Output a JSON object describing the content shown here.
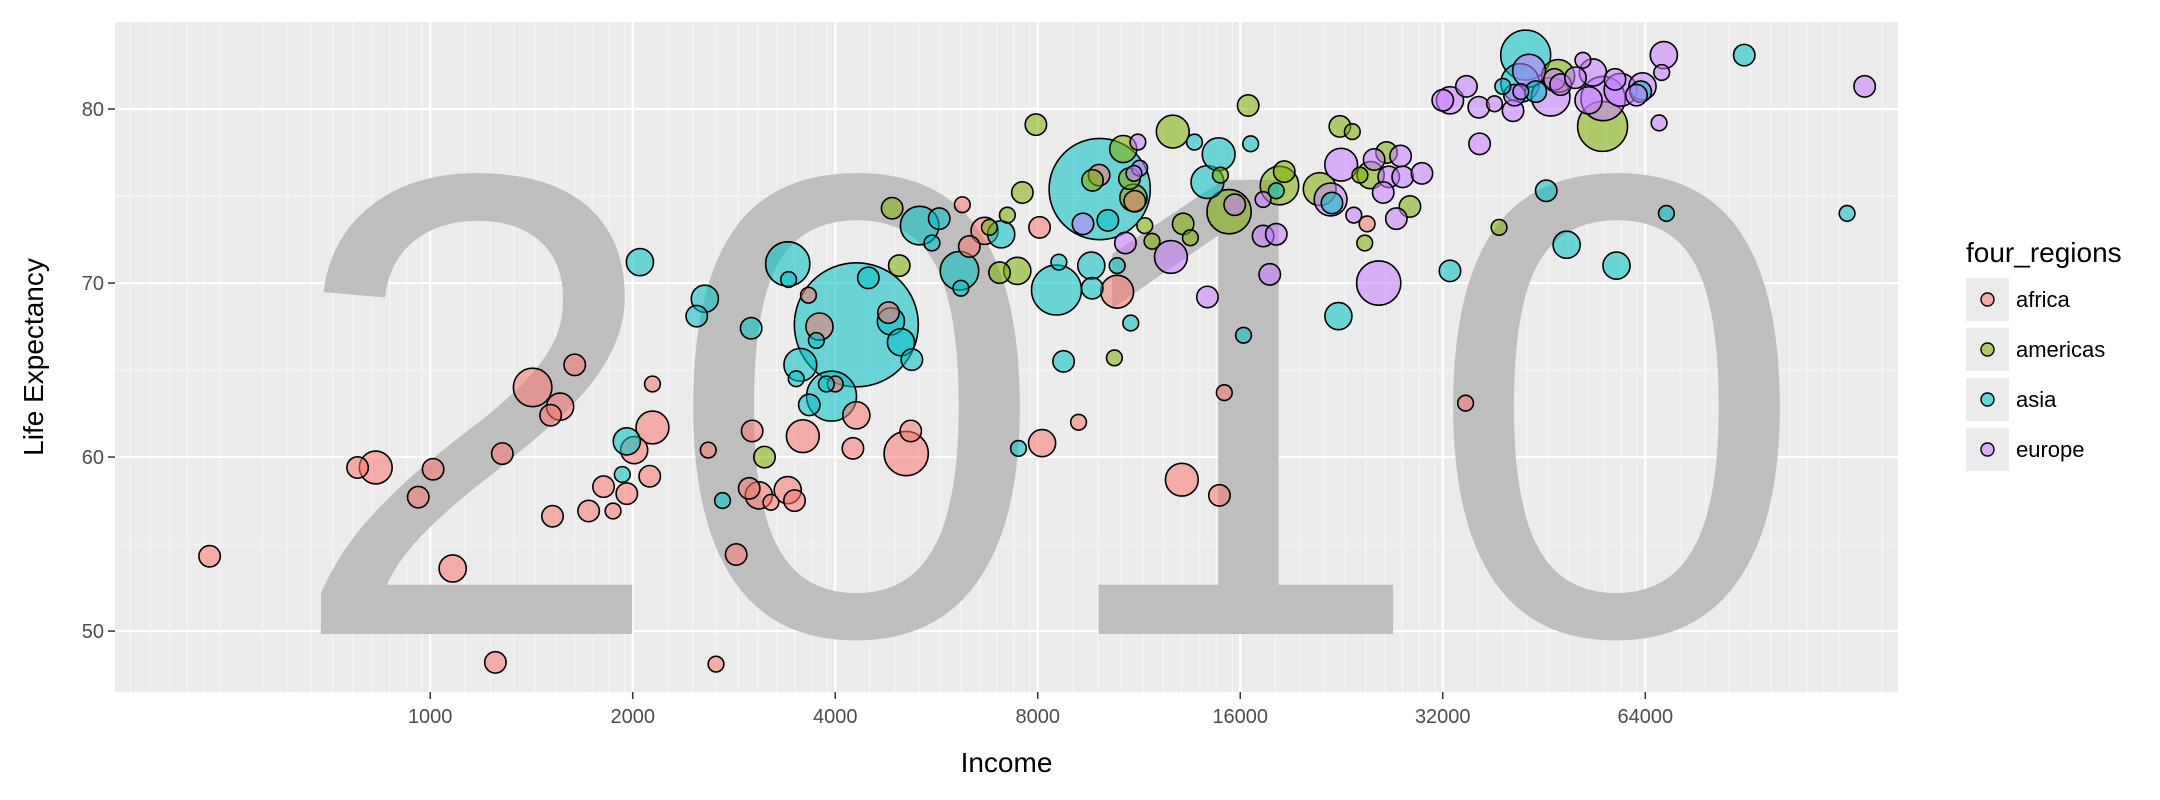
{
  "chart_data": {
    "type": "scatter",
    "title": "",
    "watermark": "2010",
    "xlabel": "Income",
    "ylabel": "Life Expectancy",
    "x_scale": "log2",
    "xlim": [
      340,
      152000
    ],
    "ylim": [
      46.5,
      85
    ],
    "x_ticks": [
      1000,
      2000,
      4000,
      8000,
      16000,
      32000,
      64000
    ],
    "x_tick_labels": [
      "1000",
      "2000",
      "4000",
      "8000",
      "16000",
      "32000",
      "64000"
    ],
    "y_ticks": [
      50,
      60,
      70,
      80
    ],
    "y_tick_labels": [
      "50",
      "60",
      "70",
      "80"
    ],
    "grid": true,
    "legend": {
      "title": "four_regions",
      "position": "right"
    },
    "series": [
      {
        "name": "africa",
        "color": "#F8766D",
        "points": [
          [
            470,
            54.3,
            2
          ],
          [
            780,
            59.4,
            2
          ],
          [
            830,
            59.4,
            4
          ],
          [
            960,
            57.7,
            2
          ],
          [
            1010,
            59.3,
            2
          ],
          [
            1080,
            53.6,
            3
          ],
          [
            1250,
            48.2,
            2
          ],
          [
            1280,
            60.2,
            2
          ],
          [
            1420,
            64,
            5
          ],
          [
            1510,
            62.4,
            2
          ],
          [
            1560,
            62.9,
            3
          ],
          [
            1640,
            65.3,
            2
          ],
          [
            1520,
            56.6,
            2
          ],
          [
            1720,
            56.9,
            2
          ],
          [
            1810,
            58.3,
            2
          ],
          [
            1870,
            56.9,
            1
          ],
          [
            1960,
            57.9,
            2
          ],
          [
            2010,
            60.4,
            3
          ],
          [
            2120,
            58.9,
            2
          ],
          [
            2140,
            61.7,
            4
          ],
          [
            2140,
            64.2,
            1
          ],
          [
            2590,
            60.4,
            1
          ],
          [
            2660,
            48.1,
            1
          ],
          [
            2850,
            54.4,
            2
          ],
          [
            2980,
            58.2,
            2
          ],
          [
            3010,
            61.5,
            2
          ],
          [
            3080,
            57.8,
            3
          ],
          [
            3210,
            57.4,
            1
          ],
          [
            3400,
            58.1,
            3
          ],
          [
            3480,
            57.5,
            2
          ],
          [
            3580,
            61.2,
            4
          ],
          [
            3650,
            69.3,
            1
          ],
          [
            3790,
            67.5,
            3
          ],
          [
            4000,
            64.2,
            1
          ],
          [
            4300,
            62.4,
            3
          ],
          [
            4250,
            60.5,
            2
          ],
          [
            4800,
            68.3,
            2
          ],
          [
            5100,
            60.2,
            6
          ],
          [
            5180,
            61.5,
            2
          ],
          [
            6180,
            74.5,
            1
          ],
          [
            6330,
            72.1,
            2
          ],
          [
            6670,
            73,
            3
          ],
          [
            8050,
            73.2,
            2
          ],
          [
            8120,
            60.8,
            3
          ],
          [
            9200,
            62,
            1
          ],
          [
            9870,
            76.2,
            2
          ],
          [
            10500,
            69.5,
            4
          ],
          [
            11150,
            74.7,
            2
          ],
          [
            13100,
            58.7,
            4
          ],
          [
            14900,
            57.8,
            2
          ],
          [
            15150,
            63.7,
            1
          ],
          [
            24700,
            73.4,
            1
          ],
          [
            34600,
            63.1,
            1
          ]
        ]
      },
      {
        "name": "americas",
        "color": "#7CAE00",
        "points": [
          [
            3140,
            60,
            2
          ],
          [
            4860,
            74.3,
            2
          ],
          [
            4980,
            71,
            2
          ],
          [
            6780,
            73.2,
            1
          ],
          [
            7020,
            70.6,
            2
          ],
          [
            7210,
            73.9,
            1
          ],
          [
            7460,
            70.7,
            3
          ],
          [
            7590,
            75.2,
            2
          ],
          [
            7950,
            79.1,
            2
          ],
          [
            9650,
            75.9,
            2
          ],
          [
            10400,
            65.7,
            1
          ],
          [
            10720,
            77.7,
            3
          ],
          [
            10950,
            76,
            2
          ],
          [
            11100,
            74.9,
            3
          ],
          [
            11540,
            73.3,
            1
          ],
          [
            11830,
            72.4,
            1
          ],
          [
            12700,
            78.7,
            4
          ],
          [
            13160,
            73.4,
            2
          ],
          [
            13490,
            72.6,
            1
          ],
          [
            14950,
            76.2,
            1
          ],
          [
            15400,
            74.1,
            6
          ],
          [
            16440,
            80.2,
            2
          ],
          [
            18300,
            75.6,
            5
          ],
          [
            18600,
            76.4,
            2
          ],
          [
            21000,
            75.4,
            4
          ],
          [
            22500,
            79,
            2
          ],
          [
            23480,
            78.7,
            1
          ],
          [
            24100,
            76.2,
            1
          ],
          [
            24500,
            72.3,
            1
          ],
          [
            25000,
            76.2,
            3
          ],
          [
            26400,
            77.5,
            2
          ],
          [
            28600,
            74.4,
            2
          ],
          [
            38800,
            73.2,
            1
          ],
          [
            47500,
            81.9,
            4
          ],
          [
            55300,
            79,
            7
          ]
        ]
      },
      {
        "name": "asia",
        "color": "#00BFC4",
        "points": [
          [
            1930,
            59,
            1
          ],
          [
            1960,
            60.9,
            3
          ],
          [
            2050,
            71.2,
            3
          ],
          [
            2490,
            68.1,
            2
          ],
          [
            2560,
            69.1,
            3
          ],
          [
            2720,
            57.5,
            1
          ],
          [
            3000,
            67.4,
            2
          ],
          [
            3400,
            71.1,
            6
          ],
          [
            3410,
            70.2,
            1
          ],
          [
            3500,
            64.5,
            1
          ],
          [
            3550,
            65.3,
            4
          ],
          [
            3660,
            63,
            2
          ],
          [
            3750,
            66.7,
            1
          ],
          [
            3880,
            64.2,
            1
          ],
          [
            3950,
            63.5,
            7
          ],
          [
            4300,
            67.6,
            20
          ],
          [
            4480,
            70.3,
            2
          ],
          [
            4840,
            67.8,
            3
          ],
          [
            5010,
            66.6,
            3
          ],
          [
            5200,
            65.6,
            2
          ],
          [
            5340,
            73.3,
            5
          ],
          [
            5570,
            72.3,
            1
          ],
          [
            5710,
            73.7,
            2
          ],
          [
            6120,
            70.7,
            5
          ],
          [
            6150,
            69.7,
            1
          ],
          [
            7060,
            72.8,
            3
          ],
          [
            7490,
            60.5,
            1
          ],
          [
            8530,
            69.6,
            7
          ],
          [
            8600,
            71.2,
            1
          ],
          [
            8740,
            65.5,
            2
          ],
          [
            9610,
            71,
            3
          ],
          [
            9640,
            69.7,
            2
          ],
          [
            9890,
            75.4,
            16
          ],
          [
            10170,
            73.6,
            2
          ],
          [
            10500,
            71,
            1
          ],
          [
            11000,
            67.7,
            1
          ],
          [
            13680,
            78.1,
            1
          ],
          [
            14300,
            75.8,
            4
          ],
          [
            14860,
            77.4,
            4
          ],
          [
            16180,
            67,
            1
          ],
          [
            16580,
            78,
            1
          ],
          [
            18100,
            75.3,
            1
          ],
          [
            21900,
            74.6,
            2
          ],
          [
            22390,
            68.1,
            3
          ],
          [
            32800,
            70.7,
            2
          ],
          [
            39300,
            81.3,
            1
          ],
          [
            41700,
            81.5,
            5
          ],
          [
            42500,
            83.1,
            7
          ],
          [
            44000,
            81,
            2
          ],
          [
            45600,
            75.3,
            2
          ],
          [
            48900,
            72.2,
            3
          ],
          [
            58000,
            71,
            3
          ],
          [
            63000,
            81,
            2
          ],
          [
            68800,
            74,
            1
          ],
          [
            89800,
            83.1,
            2
          ],
          [
            127700,
            74,
            1
          ]
        ]
      },
      {
        "name": "europe",
        "color": "#C77CFF",
        "points": [
          [
            9340,
            73.4,
            2
          ],
          [
            11270,
            78.1,
            1
          ],
          [
            11340,
            76.6,
            1
          ],
          [
            11120,
            76.3,
            1
          ],
          [
            10800,
            72.3,
            2
          ],
          [
            12620,
            71.5,
            4
          ],
          [
            14300,
            69.2,
            2
          ],
          [
            15700,
            74.5,
            2
          ],
          [
            17300,
            72.7,
            2
          ],
          [
            17700,
            70.5,
            2
          ],
          [
            17300,
            74.8,
            1
          ],
          [
            18100,
            72.8,
            2
          ],
          [
            21800,
            74.8,
            4
          ],
          [
            22600,
            76.8,
            4
          ],
          [
            23600,
            73.9,
            1
          ],
          [
            25300,
            77.1,
            2
          ],
          [
            25700,
            70,
            6
          ],
          [
            26600,
            76.1,
            2
          ],
          [
            27700,
            77.3,
            2
          ],
          [
            27300,
            73.7,
            2
          ],
          [
            26100,
            75.2,
            2
          ],
          [
            27900,
            76.1,
            2
          ],
          [
            29800,
            76.3,
            2
          ],
          [
            32000,
            80.5,
            2
          ],
          [
            32800,
            80.5,
            3
          ],
          [
            34700,
            81.3,
            2
          ],
          [
            36200,
            80.1,
            2
          ],
          [
            36300,
            78,
            2
          ],
          [
            38200,
            80.3,
            1
          ],
          [
            40700,
            79.9,
            2
          ],
          [
            40900,
            80.8,
            2
          ],
          [
            41800,
            81,
            1
          ],
          [
            43000,
            82.2,
            4
          ],
          [
            46300,
            80.7,
            5
          ],
          [
            46900,
            81.7,
            2
          ],
          [
            47900,
            81.4,
            2
          ],
          [
            50400,
            81.8,
            2
          ],
          [
            51700,
            82.8,
            1
          ],
          [
            52700,
            80.5,
            3
          ],
          [
            53500,
            82.1,
            3
          ],
          [
            55400,
            80.6,
            6
          ],
          [
            57700,
            81.7,
            2
          ],
          [
            58800,
            81.1,
            4
          ],
          [
            62100,
            80.8,
            2
          ],
          [
            63400,
            81.3,
            3
          ],
          [
            67100,
            79.2,
            1
          ],
          [
            67700,
            82.1,
            1
          ],
          [
            68200,
            83.1,
            3
          ],
          [
            135600,
            81.3,
            2
          ]
        ]
      }
    ]
  }
}
